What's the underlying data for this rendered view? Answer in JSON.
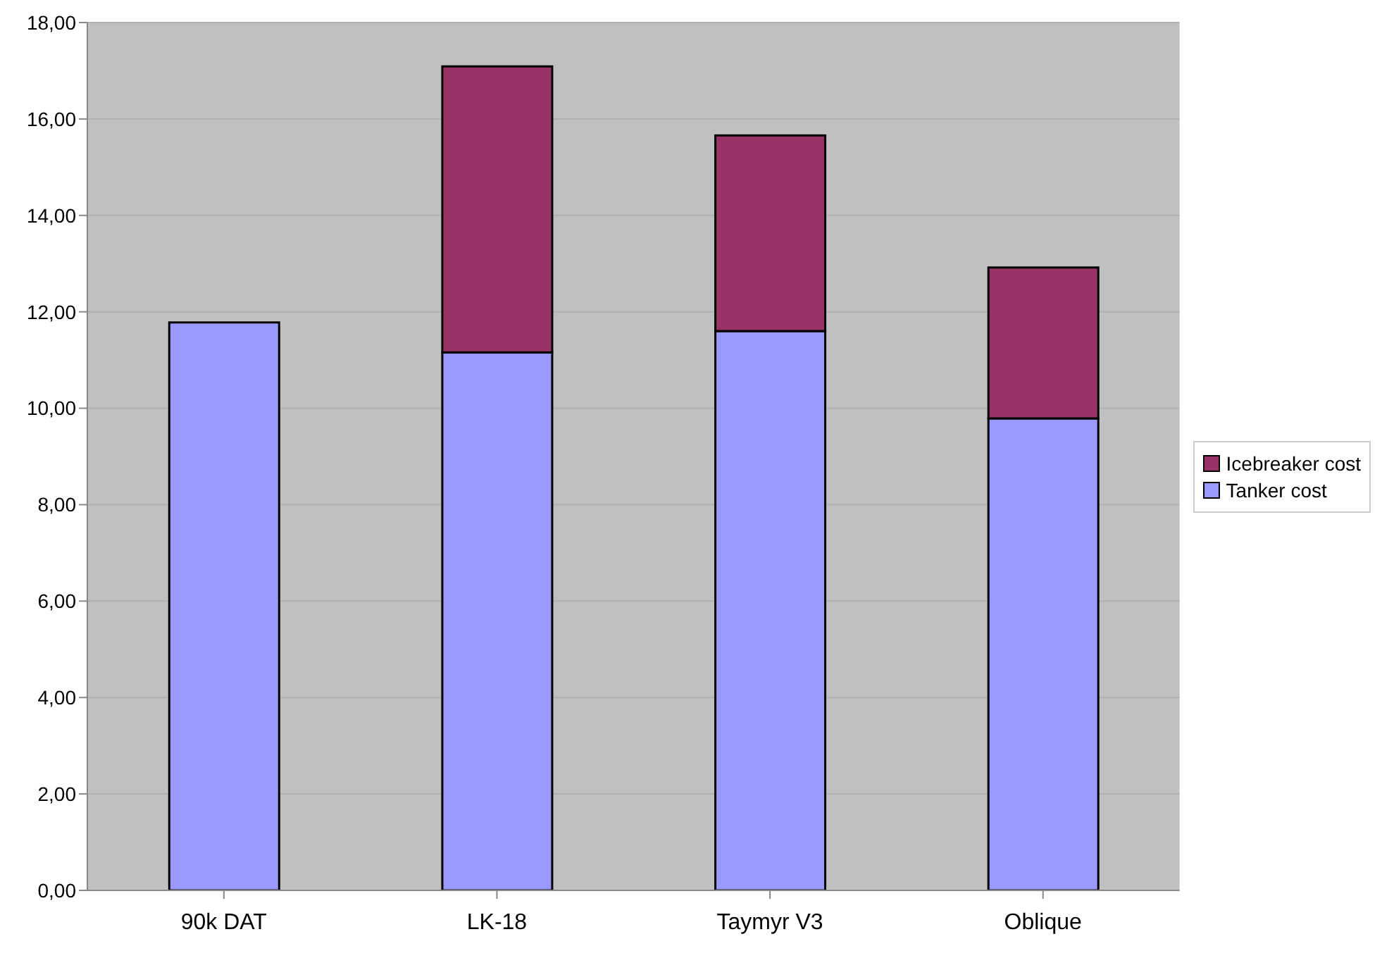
{
  "chart_data": {
    "type": "bar",
    "stacked": true,
    "categories": [
      "90k DAT",
      "LK-18",
      "Taymyr V3",
      "Oblique"
    ],
    "series": [
      {
        "name": "Tanker cost",
        "color": "#9999ff",
        "values": [
          11.78,
          11.16,
          11.6,
          9.79
        ]
      },
      {
        "name": "Icebreaker cost",
        "color": "#993366",
        "values": [
          null,
          5.93,
          4.06,
          3.13
        ]
      }
    ],
    "ylim": [
      0,
      18
    ],
    "yticks": [
      {
        "value": 0,
        "label": "0,00"
      },
      {
        "value": 2,
        "label": "2,00"
      },
      {
        "value": 4,
        "label": "4,00"
      },
      {
        "value": 6,
        "label": "6,00"
      },
      {
        "value": 8,
        "label": "8,00"
      },
      {
        "value": 10,
        "label": "10,00"
      },
      {
        "value": 12,
        "label": "12,00"
      },
      {
        "value": 14,
        "label": "14,00"
      },
      {
        "value": 16,
        "label": "16,00"
      },
      {
        "value": 18,
        "label": "18,00"
      }
    ],
    "grid": "y",
    "legend": "right"
  }
}
